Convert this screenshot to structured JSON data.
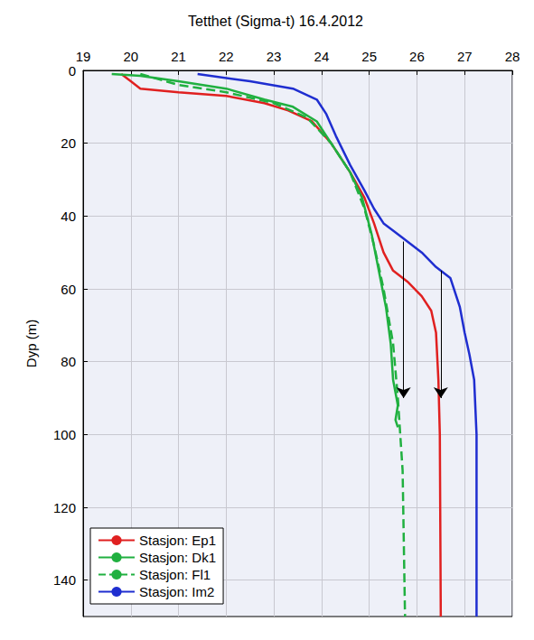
{
  "chart_data": {
    "type": "line",
    "title": "Tetthet (Sigma-t) 16.4.2012",
    "y_label": "Dyp (m)",
    "xlim": [
      19,
      28
    ],
    "xticks": [
      19,
      20,
      21,
      22,
      23,
      24,
      25,
      26,
      27,
      28
    ],
    "ylim": [
      0,
      150
    ],
    "yticks": [
      0,
      20,
      40,
      60,
      80,
      100,
      120,
      140
    ],
    "grid": true,
    "legend": "bottom-left",
    "series": [
      {
        "name": "Stasjon: Ep1",
        "color": "#e02020",
        "line_style": "solid",
        "values": [
          [
            19.8,
            1
          ],
          [
            20.0,
            3
          ],
          [
            20.2,
            5
          ],
          [
            21.0,
            6
          ],
          [
            22.0,
            7
          ],
          [
            22.8,
            9
          ],
          [
            23.3,
            11
          ],
          [
            23.8,
            14
          ],
          [
            24.2,
            20
          ],
          [
            24.6,
            28
          ],
          [
            24.9,
            35
          ],
          [
            25.1,
            42
          ],
          [
            25.3,
            50
          ],
          [
            25.5,
            55
          ],
          [
            25.8,
            58
          ],
          [
            26.1,
            62
          ],
          [
            26.3,
            66
          ],
          [
            26.4,
            72
          ],
          [
            26.45,
            85
          ],
          [
            26.48,
            100
          ],
          [
            26.5,
            150
          ]
        ]
      },
      {
        "name": "Stasjon: Dk1",
        "color": "#20b040",
        "line_style": "solid",
        "values": [
          [
            19.6,
            1
          ],
          [
            20.2,
            1.5
          ],
          [
            21.0,
            3
          ],
          [
            22.0,
            5
          ],
          [
            22.8,
            8
          ],
          [
            23.4,
            10
          ],
          [
            23.9,
            14
          ],
          [
            24.2,
            20
          ],
          [
            24.6,
            28
          ],
          [
            24.85,
            35
          ],
          [
            25.05,
            45
          ],
          [
            25.2,
            55
          ],
          [
            25.35,
            65
          ],
          [
            25.45,
            75
          ],
          [
            25.5,
            85
          ],
          [
            25.6,
            92
          ],
          [
            25.55,
            96
          ],
          [
            25.6,
            98
          ]
        ]
      },
      {
        "name": "Stasjon: Fl1",
        "color": "#20b040",
        "line_style": "dashed",
        "values": [
          [
            20.2,
            1
          ],
          [
            21.0,
            4
          ],
          [
            22.0,
            6
          ],
          [
            23.0,
            9
          ],
          [
            23.7,
            13
          ],
          [
            24.2,
            20
          ],
          [
            24.6,
            28
          ],
          [
            24.9,
            38
          ],
          [
            25.1,
            48
          ],
          [
            25.3,
            60
          ],
          [
            25.5,
            75
          ],
          [
            25.6,
            90
          ],
          [
            25.7,
            110
          ],
          [
            25.75,
            150
          ]
        ]
      },
      {
        "name": "Stasjon: Im2",
        "color": "#1f2ed0",
        "line_style": "solid",
        "values": [
          [
            21.4,
            1
          ],
          [
            22.5,
            3
          ],
          [
            23.4,
            5
          ],
          [
            23.9,
            8
          ],
          [
            24.1,
            12
          ],
          [
            24.3,
            18
          ],
          [
            24.6,
            26
          ],
          [
            24.9,
            33
          ],
          [
            25.1,
            38
          ],
          [
            25.3,
            42
          ],
          [
            25.7,
            46
          ],
          [
            26.1,
            50
          ],
          [
            26.4,
            54
          ],
          [
            26.7,
            57
          ],
          [
            26.9,
            65
          ],
          [
            27.0,
            72
          ],
          [
            27.1,
            78
          ],
          [
            27.2,
            85
          ],
          [
            27.25,
            100
          ],
          [
            27.25,
            150
          ]
        ]
      }
    ],
    "arrows": [
      {
        "from": [
          25.72,
          47
        ],
        "to": [
          25.72,
          90
        ]
      },
      {
        "from": [
          26.5,
          55
        ],
        "to": [
          26.5,
          90
        ]
      }
    ]
  }
}
